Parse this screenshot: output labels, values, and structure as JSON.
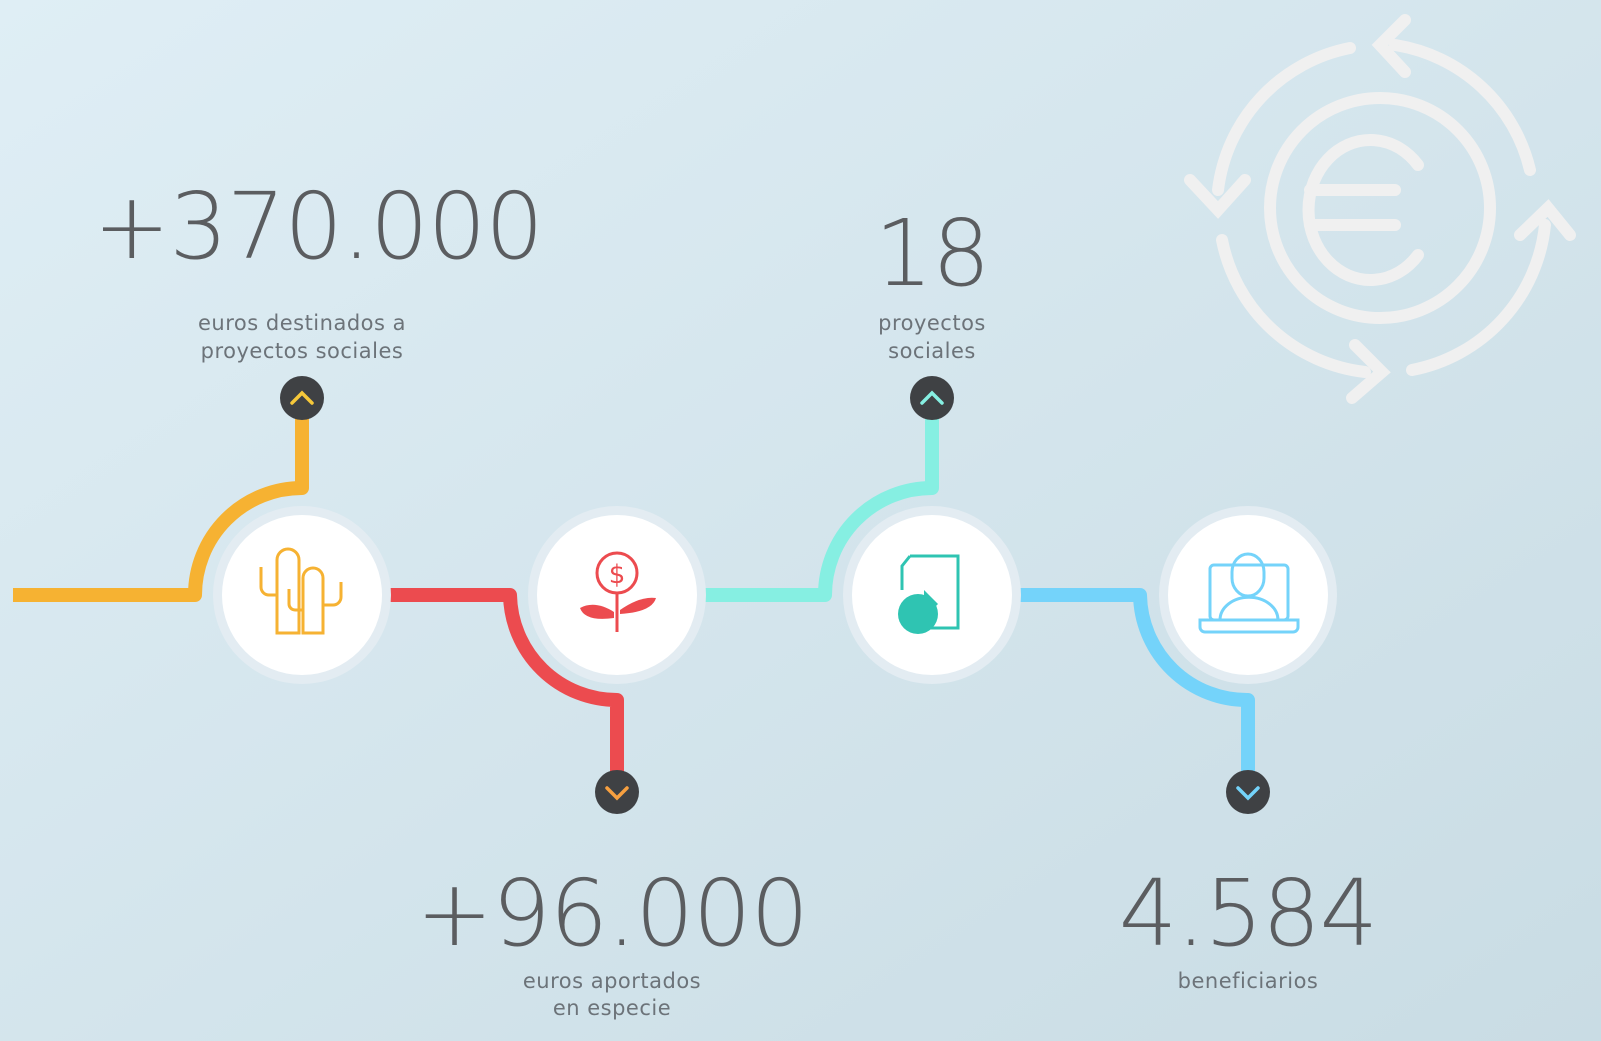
{
  "stats": [
    {
      "value": "+370.000",
      "caption": [
        "euros destinados a",
        "proyectos sociales"
      ]
    },
    {
      "value": "+96.000",
      "caption": [
        "euros aportados",
        "en especie"
      ]
    },
    {
      "value": "18",
      "caption": [
        "proyectos",
        "sociales"
      ]
    },
    {
      "value": "4.584",
      "caption": [
        "beneficiarios"
      ]
    }
  ]
}
